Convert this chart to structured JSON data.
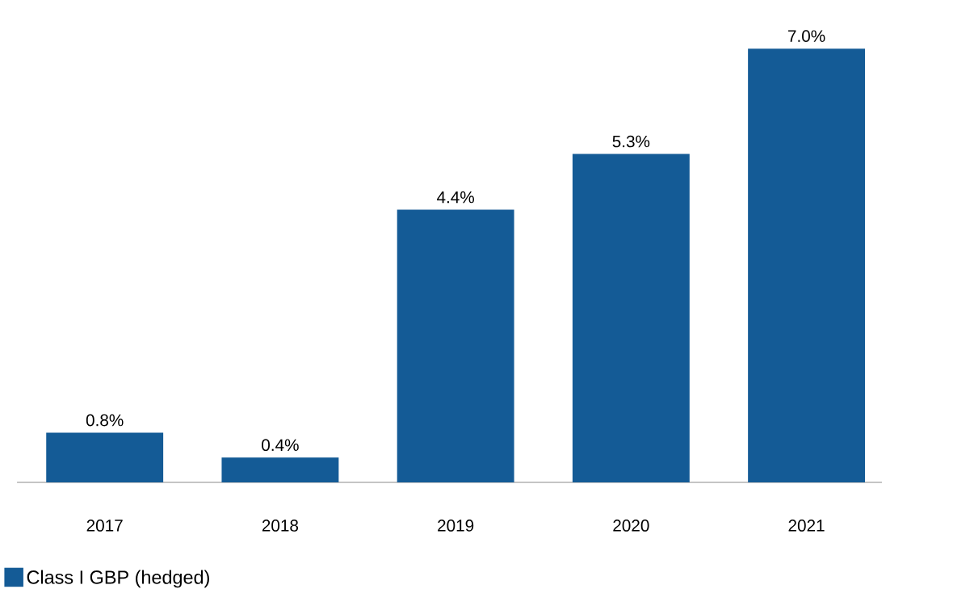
{
  "chart_data": {
    "type": "bar",
    "categories": [
      "2017",
      "2018",
      "2019",
      "2020",
      "2021"
    ],
    "series": [
      {
        "name": "Class I GBP (hedged)",
        "color": "#145b96",
        "values": [
          0.8,
          0.4,
          4.4,
          5.3,
          7.0
        ],
        "value_labels": [
          "0.8%",
          "0.4%",
          "4.4%",
          "5.3%",
          "7.0%"
        ]
      }
    ],
    "legend": "bottom left"
  }
}
